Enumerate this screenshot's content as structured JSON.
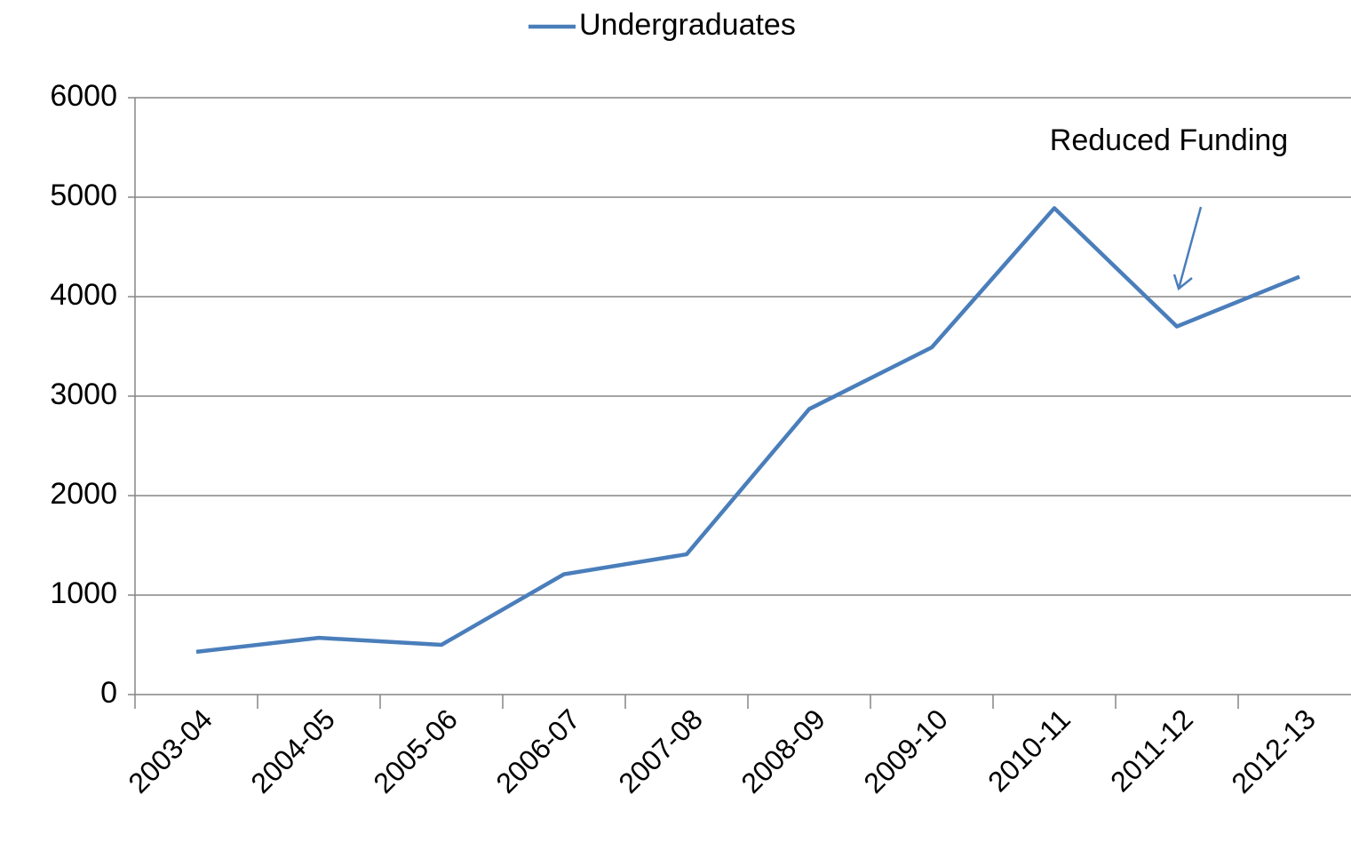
{
  "chart_data": {
    "type": "line",
    "categories": [
      "2003-04",
      "2004-05",
      "2005-06",
      "2006-07",
      "2007-08",
      "2008-09",
      "2009-10",
      "2010-11",
      "2011-12",
      "2012-13"
    ],
    "series": [
      {
        "name": "Undergraduates",
        "color": "#4a7ebb",
        "values": [
          430,
          570,
          500,
          1210,
          1410,
          2870,
          3490,
          4890,
          3700,
          4200
        ]
      }
    ],
    "ylim": [
      0,
      6000
    ],
    "yticks": [
      0,
      1000,
      2000,
      3000,
      4000,
      5000,
      6000
    ],
    "grid": true,
    "legend": "top",
    "annotation": "Reduced Funding"
  }
}
